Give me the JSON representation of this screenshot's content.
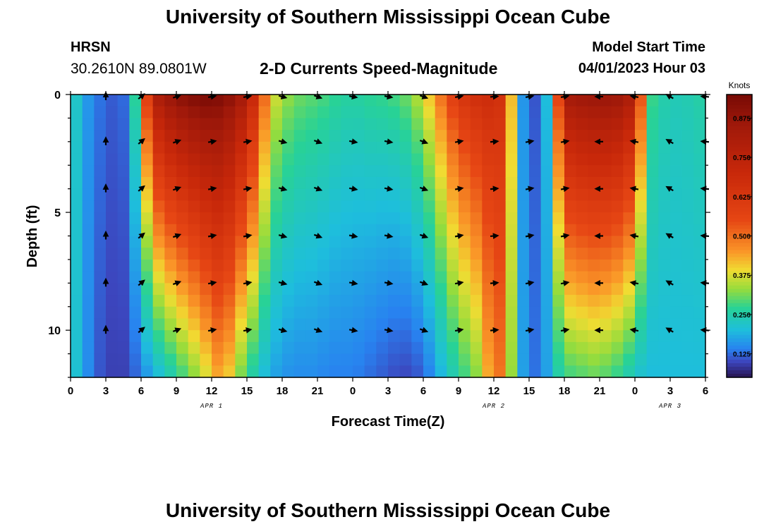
{
  "header": {
    "title": "University of Southern Mississippi Ocean Cube",
    "station": "HRSN",
    "coords": "30.2610N  89.0801W",
    "subtitle": "2-D Currents Speed-Magnitude",
    "start_label": "Model Start Time",
    "start_value": "04/01/2023 Hour 03"
  },
  "footer": {
    "title": "University of Southern Mississippi Ocean Cube"
  },
  "chart_data": {
    "type": "heatmap",
    "title": "2-D Currents Speed-Magnitude",
    "xlabel": "Forecast Time(Z)",
    "ylabel": "Depth (ft)",
    "x_ticks": [
      "0",
      "3",
      "6",
      "9",
      "12",
      "15",
      "18",
      "21",
      "0",
      "3",
      "6",
      "9",
      "12",
      "15",
      "18",
      "21",
      "0",
      "3",
      "6"
    ],
    "x_range": [
      0,
      54
    ],
    "y_ticks": [
      "0",
      "5",
      "10"
    ],
    "y_range": [
      0,
      12
    ],
    "date_labels": [
      {
        "label": "APR 1",
        "hour": 12
      },
      {
        "label": "APR 2",
        "hour": 36
      },
      {
        "label": "APR 3",
        "hour": 51
      }
    ],
    "colorbar": {
      "label": "Knots",
      "ticks": [
        "0.125",
        "0.250",
        "0.375",
        "0.500",
        "0.625",
        "0.750",
        "0.875"
      ],
      "tick_values": [
        0.125,
        0.25,
        0.375,
        0.5,
        0.625,
        0.75,
        0.875
      ],
      "range": [
        0.05,
        0.95
      ]
    },
    "speed_profile": {
      "note": "speed (knots) by forecast hour at surface and bottom; interpolated with depth",
      "hours": [
        0,
        1,
        2,
        3,
        4,
        5,
        6,
        7,
        8,
        9,
        10,
        11,
        12,
        13,
        14,
        15,
        16,
        17,
        18,
        19,
        20,
        21,
        22,
        23,
        24,
        25,
        26,
        27,
        28,
        29,
        30,
        31,
        32,
        33,
        34,
        35,
        36,
        37,
        38,
        39,
        40,
        41,
        42,
        43,
        44,
        45,
        46,
        47,
        48,
        49,
        50,
        51,
        52,
        53,
        54
      ],
      "surface": [
        0.26,
        0.18,
        0.14,
        0.12,
        0.11,
        0.14,
        0.4,
        0.78,
        0.86,
        0.9,
        0.93,
        0.95,
        0.95,
        0.93,
        0.88,
        0.8,
        0.62,
        0.4,
        0.34,
        0.32,
        0.3,
        0.3,
        0.28,
        0.27,
        0.26,
        0.27,
        0.28,
        0.28,
        0.3,
        0.32,
        0.38,
        0.45,
        0.55,
        0.62,
        0.66,
        0.68,
        0.68,
        0.64,
        0.2,
        0.12,
        0.1,
        0.3,
        0.83,
        0.86,
        0.87,
        0.88,
        0.88,
        0.86,
        0.78,
        0.3,
        0.26,
        0.24,
        0.24,
        0.25,
        0.26
      ],
      "bottom": [
        0.24,
        0.18,
        0.12,
        0.1,
        0.09,
        0.1,
        0.14,
        0.18,
        0.22,
        0.26,
        0.3,
        0.34,
        0.4,
        0.46,
        0.34,
        0.28,
        0.22,
        0.18,
        0.16,
        0.15,
        0.15,
        0.15,
        0.14,
        0.14,
        0.14,
        0.13,
        0.12,
        0.11,
        0.1,
        0.1,
        0.12,
        0.16,
        0.22,
        0.26,
        0.3,
        0.34,
        0.52,
        0.46,
        0.2,
        0.14,
        0.12,
        0.22,
        0.28,
        0.28,
        0.3,
        0.3,
        0.28,
        0.26,
        0.22,
        0.2,
        0.2,
        0.2,
        0.2,
        0.2,
        0.2
      ]
    },
    "vectors": {
      "depths": [
        0,
        2,
        4,
        6,
        8,
        10,
        12
      ],
      "hours": [
        3,
        6,
        9,
        12,
        15,
        18,
        21,
        24,
        27,
        30,
        33,
        36,
        39,
        42,
        45,
        48,
        51,
        54
      ],
      "direction_deg_by_hour": [
        90,
        40,
        20,
        10,
        10,
        -15,
        -20,
        -10,
        -10,
        -20,
        10,
        5,
        10,
        10,
        180,
        170,
        150,
        175
      ]
    }
  }
}
